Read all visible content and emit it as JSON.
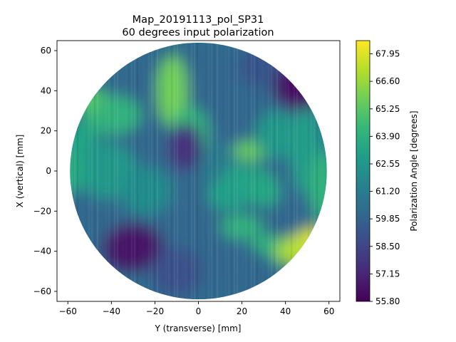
{
  "chart_data": {
    "type": "heatmap",
    "title_line1": "Map_20191113_pol_SP31",
    "title_line2": "60 degrees input polarization",
    "xlabel": "Y (transverse) [mm]",
    "ylabel": "X (vertical) [mm]",
    "xlim": [
      -65,
      65
    ],
    "ylim": [
      -65,
      65
    ],
    "x_ticks": [
      -60,
      -40,
      -20,
      0,
      20,
      40,
      60
    ],
    "y_ticks": [
      -60,
      -40,
      -20,
      0,
      20,
      40,
      60
    ],
    "disk_radius": 64,
    "colormap": "viridis",
    "colorbar": {
      "label": "Polarization Angle [degrees]",
      "range": [
        55.8,
        68.6
      ],
      "ticks": [
        "55.80",
        "57.15",
        "58.50",
        "59.85",
        "61.20",
        "62.55",
        "63.90",
        "65.25",
        "66.60",
        "67.95"
      ]
    },
    "features": [
      {
        "y": 0,
        "x": 0,
        "value": 60.0,
        "ry": 60,
        "rx": 60
      },
      {
        "y": -12,
        "x": 40,
        "value": 65.8,
        "ry": 7,
        "rx": 18
      },
      {
        "y": -4,
        "x": 18,
        "value": 64.2,
        "ry": 9,
        "rx": 14
      },
      {
        "y": -40,
        "x": 28,
        "value": 64.0,
        "ry": 14,
        "rx": 10
      },
      {
        "y": -50,
        "x": 36,
        "value": 65.0,
        "ry": 7,
        "rx": 7
      },
      {
        "y": -55,
        "x": 8,
        "value": 63.2,
        "ry": 10,
        "rx": 16
      },
      {
        "y": -42,
        "x": 0,
        "value": 62.6,
        "ry": 14,
        "rx": 14
      },
      {
        "y": -24,
        "x": -10,
        "value": 62.0,
        "ry": 12,
        "rx": 12
      },
      {
        "y": -6,
        "x": 12,
        "value": 57.6,
        "ry": 8,
        "rx": 12
      },
      {
        "y": 10,
        "x": 2,
        "value": 61.0,
        "ry": 10,
        "rx": 12
      },
      {
        "y": 24,
        "x": 10,
        "value": 65.6,
        "ry": 8,
        "rx": 5
      },
      {
        "y": 22,
        "x": -4,
        "value": 63.2,
        "ry": 12,
        "rx": 7
      },
      {
        "y": 14,
        "x": -12,
        "value": 63.0,
        "ry": 10,
        "rx": 8
      },
      {
        "y": 20,
        "x": -28,
        "value": 64.0,
        "ry": 10,
        "rx": 6
      },
      {
        "y": 32,
        "x": -40,
        "value": 64.2,
        "ry": 9,
        "rx": 8
      },
      {
        "y": 46,
        "x": -40,
        "value": 67.0,
        "ry": 10,
        "rx": 8
      },
      {
        "y": 52,
        "x": -34,
        "value": 67.9,
        "ry": 6,
        "rx": 6
      },
      {
        "y": 36,
        "x": 18,
        "value": 62.6,
        "ry": 10,
        "rx": 12
      },
      {
        "y": 48,
        "x": 44,
        "value": 56.4,
        "ry": 14,
        "rx": 14
      },
      {
        "y": 50,
        "x": 10,
        "value": 62.8,
        "ry": 8,
        "rx": 22
      },
      {
        "y": 28,
        "x": 52,
        "value": 59.2,
        "ry": 10,
        "rx": 10
      },
      {
        "y": -30,
        "x": -38,
        "value": 56.6,
        "ry": 14,
        "rx": 12
      },
      {
        "y": -10,
        "x": -50,
        "value": 59.0,
        "ry": 12,
        "rx": 12
      },
      {
        "y": 20,
        "x": -50,
        "value": 60.0,
        "ry": 16,
        "rx": 12
      },
      {
        "y": 58,
        "x": -8,
        "value": 64.0,
        "ry": 7,
        "rx": 18
      },
      {
        "y": -60,
        "x": 0,
        "value": 63.5,
        "ry": 8,
        "rx": 12
      },
      {
        "y": 30,
        "x": -10,
        "value": 63.4,
        "ry": 8,
        "rx": 8
      }
    ]
  }
}
